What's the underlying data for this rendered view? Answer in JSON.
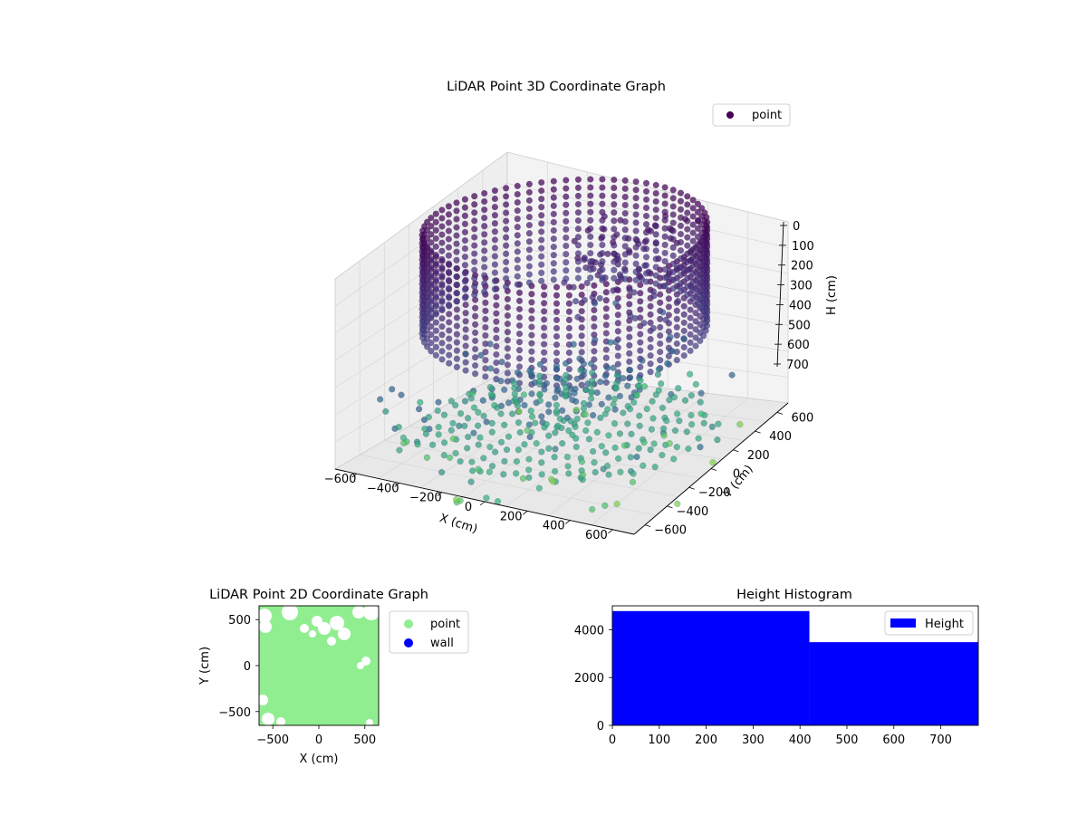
{
  "chart_data": [
    {
      "type": "scatter",
      "title": "LiDAR Point 3D Coordinate Graph",
      "xlabel": "X (cm)",
      "ylabel": "Y (cm)",
      "zlabel": "H (cm)",
      "xlim": [
        -700,
        700
      ],
      "ylim": [
        -700,
        700
      ],
      "zlim": [
        700,
        0
      ],
      "z_axis_inverted": true,
      "xticks": [
        "−600",
        "−400",
        "−200",
        "0",
        "200",
        "400",
        "600"
      ],
      "yticks": [
        "−600",
        "−400",
        "−200",
        "0",
        "200",
        "400",
        "600"
      ],
      "zticks": [
        "0",
        "100",
        "200",
        "300",
        "400",
        "500",
        "600",
        "700"
      ],
      "legend": {
        "position": "top-right",
        "entries": [
          {
            "label": "point",
            "color": "#440154"
          }
        ]
      },
      "colormap": "viridis",
      "grid": true,
      "series": [
        {
          "name": "point",
          "structures": [
            {
              "shape": "ring",
              "radius_cm": 600,
              "h_top_cm": 0,
              "h_bottom_cm": 330
            },
            {
              "shape": "floor-disc",
              "radius_cm": 600,
              "h_cm": 640
            },
            {
              "shape": "floor-disc",
              "radius_cm": 360,
              "h_cm": 520
            },
            {
              "shape": "outliers",
              "h_range_cm": [
                450,
                750
              ]
            }
          ]
        }
      ]
    },
    {
      "type": "scatter",
      "title": "LiDAR Point 2D Coordinate Graph",
      "xlabel": "X (cm)",
      "ylabel": "Y (cm)",
      "xlim": [
        -650,
        650
      ],
      "ylim": [
        -650,
        650
      ],
      "xticks": [
        "−500",
        "0",
        "500"
      ],
      "yticks": [
        "500",
        "0",
        "−500"
      ],
      "legend": {
        "position": "outside-right",
        "entries": [
          {
            "label": "point",
            "color": "#90ee90"
          },
          {
            "label": "wall",
            "color": "#0000ff"
          }
        ]
      },
      "series": [
        {
          "name": "point",
          "color": "#90ee90",
          "coverage": "dense, nearly full"
        },
        {
          "name": "wall",
          "color": "#0000ff",
          "points": []
        }
      ]
    },
    {
      "type": "bar",
      "title": "Height Histogram",
      "xlabel": "",
      "ylabel": "",
      "xlim": [
        0,
        780
      ],
      "ylim": [
        0,
        5000
      ],
      "xticks": [
        "0",
        "100",
        "200",
        "300",
        "400",
        "500",
        "600",
        "700"
      ],
      "yticks": [
        "0",
        "2000",
        "4000"
      ],
      "legend": {
        "position": "top-right",
        "entries": [
          {
            "label": "Height",
            "color": "#0000ff"
          }
        ]
      },
      "bins": [
        {
          "from": 0,
          "to": 420,
          "count": 4780
        },
        {
          "from": 420,
          "to": 780,
          "count": 3480
        }
      ]
    }
  ]
}
